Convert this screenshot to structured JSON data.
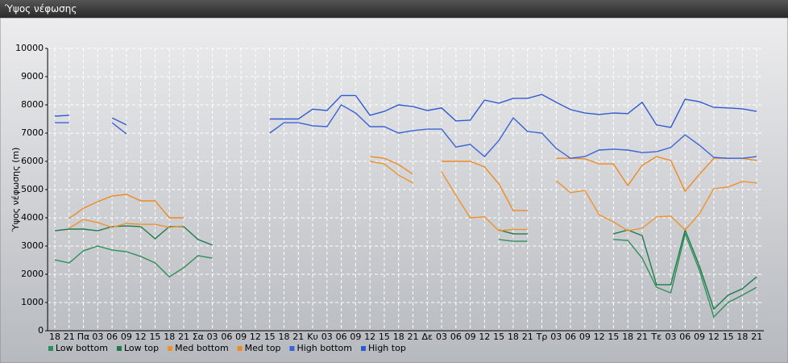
{
  "chart_data": {
    "type": "line",
    "title": "Ύψος νέφωσης",
    "y_label": "Ύψος νέφωσης (m)",
    "categories": [
      "18",
      "21",
      "Πα",
      "03",
      "06",
      "09",
      "12",
      "15",
      "18",
      "21",
      "Σα",
      "03",
      "06",
      "09",
      "12",
      "15",
      "18",
      "21",
      "Κυ",
      "03",
      "06",
      "09",
      "12",
      "15",
      "18",
      "21",
      "Δε",
      "03",
      "06",
      "09",
      "12",
      "15",
      "18",
      "21",
      "Τρ",
      "03",
      "06",
      "09",
      "12",
      "15",
      "18",
      "21",
      "Τε",
      "03",
      "06",
      "09",
      "12",
      "15",
      "18",
      "21"
    ],
    "ylim": [
      0,
      10000
    ],
    "yticks": [
      0,
      1000,
      2000,
      3000,
      4000,
      5000,
      6000,
      7000,
      8000,
      9000,
      10000
    ],
    "grid": true,
    "series": [
      {
        "name": "Low bottom",
        "color": "#2f8f5a",
        "values": [
          2510,
          2400,
          2830,
          3000,
          2860,
          2800,
          2630,
          2400,
          1910,
          2230,
          2660,
          2570,
          null,
          null,
          null,
          null,
          null,
          null,
          null,
          null,
          null,
          null,
          null,
          null,
          null,
          null,
          null,
          null,
          null,
          null,
          null,
          3230,
          3170,
          3170,
          null,
          null,
          null,
          null,
          null,
          3230,
          3200,
          2570,
          1540,
          1340,
          3430,
          2140,
          490,
          1000,
          1260,
          1540
        ]
      },
      {
        "name": "Low top",
        "color": "#1e7a4c",
        "values": [
          3540,
          3600,
          3600,
          3540,
          3690,
          3710,
          3690,
          3260,
          3690,
          3690,
          3230,
          3030,
          null,
          null,
          null,
          null,
          null,
          null,
          null,
          null,
          null,
          null,
          null,
          null,
          null,
          null,
          null,
          null,
          null,
          null,
          null,
          3570,
          3430,
          3430,
          null,
          null,
          null,
          null,
          null,
          3430,
          3570,
          3370,
          1630,
          1630,
          3570,
          2290,
          770,
          1260,
          1490,
          1910
        ]
      },
      {
        "name": "Med bottom",
        "color": "#f0922b",
        "values": [
          null,
          3630,
          3940,
          3830,
          3660,
          3800,
          3770,
          3770,
          3660,
          3710,
          null,
          null,
          null,
          null,
          null,
          null,
          null,
          null,
          null,
          null,
          null,
          null,
          6000,
          5910,
          5510,
          5230,
          null,
          5630,
          4800,
          4000,
          4030,
          3540,
          3590,
          3590,
          null,
          5310,
          4890,
          4970,
          4110,
          3860,
          3540,
          3630,
          4030,
          4060,
          3570,
          4140,
          5030,
          5090,
          5290,
          5230
        ]
      },
      {
        "name": "Med top",
        "color": "#ee8a22",
        "values": [
          null,
          3970,
          4340,
          4570,
          4770,
          4830,
          4600,
          4600,
          4000,
          4000,
          null,
          null,
          null,
          null,
          null,
          null,
          null,
          null,
          null,
          null,
          null,
          null,
          6170,
          6110,
          5890,
          5540,
          null,
          6000,
          6000,
          6000,
          5800,
          5200,
          4260,
          4260,
          null,
          6110,
          6110,
          6090,
          5910,
          5910,
          5140,
          5860,
          6170,
          6030,
          4940,
          5540,
          6110,
          6110,
          6110,
          6030
        ]
      },
      {
        "name": "High bottom",
        "color": "#3a63d6",
        "values": [
          7370,
          7370,
          null,
          null,
          7370,
          6970,
          null,
          null,
          null,
          null,
          null,
          null,
          null,
          null,
          null,
          7000,
          7370,
          7370,
          7260,
          7230,
          8000,
          7710,
          7230,
          7230,
          7000,
          7090,
          7140,
          7140,
          6510,
          6600,
          6170,
          6740,
          7540,
          7060,
          7000,
          6460,
          6110,
          6170,
          6400,
          6430,
          6400,
          6310,
          6340,
          6490,
          6940,
          6570,
          6140,
          6110,
          6110,
          6170
        ]
      },
      {
        "name": "High top",
        "color": "#2f5bd0",
        "values": [
          7600,
          7630,
          null,
          null,
          7540,
          7290,
          null,
          null,
          null,
          null,
          null,
          null,
          null,
          null,
          null,
          7500,
          7500,
          7500,
          7850,
          7800,
          8330,
          8330,
          7630,
          7770,
          8000,
          7940,
          7800,
          7890,
          7430,
          7460,
          8170,
          8060,
          8230,
          8230,
          8370,
          8090,
          7830,
          7710,
          7660,
          7710,
          7690,
          8090,
          7290,
          7200,
          8200,
          8110,
          7910,
          7890,
          7860,
          7770
        ]
      }
    ]
  }
}
